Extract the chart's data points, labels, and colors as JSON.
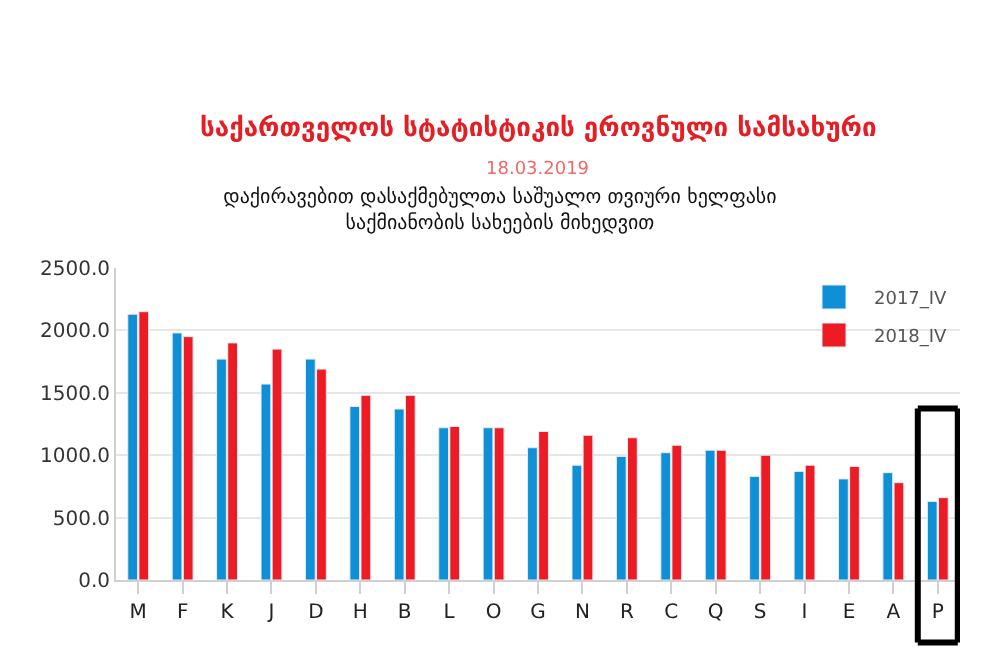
{
  "chart_data": {
    "type": "bar",
    "title": "დაქირავებით დასაქმებულთა საშუალო თვიური ხელფასი\nსაქმიანობის სახეების მიხედვით",
    "annotations": [
      "საქართველოს სტატისტიკის ეროვნული სამსახური",
      "18.03.2019"
    ],
    "categories": [
      "M",
      "F",
      "K",
      "J",
      "D",
      "H",
      "B",
      "L",
      "O",
      "G",
      "N",
      "R",
      "C",
      "Q",
      "S",
      "I",
      "E",
      "A",
      "P"
    ],
    "series": [
      {
        "name": "2017_IV",
        "color": "#0e8fd6",
        "values": [
          2130,
          1980,
          1770,
          1570,
          1770,
          1390,
          1370,
          1220,
          1220,
          1060,
          920,
          990,
          1020,
          1040,
          830,
          870,
          810,
          860,
          630
        ]
      },
      {
        "name": "2018_IV",
        "color": "#ed1c24",
        "values": [
          2150,
          1950,
          1900,
          1850,
          1690,
          1480,
          1480,
          1230,
          1220,
          1190,
          1160,
          1140,
          1080,
          1040,
          1000,
          920,
          910,
          780,
          660
        ]
      }
    ],
    "ylim": [
      0,
      2500
    ],
    "yticks": [
      {
        "value": 0,
        "label": "0.0"
      },
      {
        "value": 500,
        "label": "500.0"
      },
      {
        "value": 1000,
        "label": "1000.0"
      },
      {
        "value": 1500,
        "label": "1500.0"
      },
      {
        "value": 2000,
        "label": "2000.0"
      },
      {
        "value": 2500,
        "label": "2500.0"
      }
    ],
    "grid": "y",
    "legend": "top right"
  }
}
